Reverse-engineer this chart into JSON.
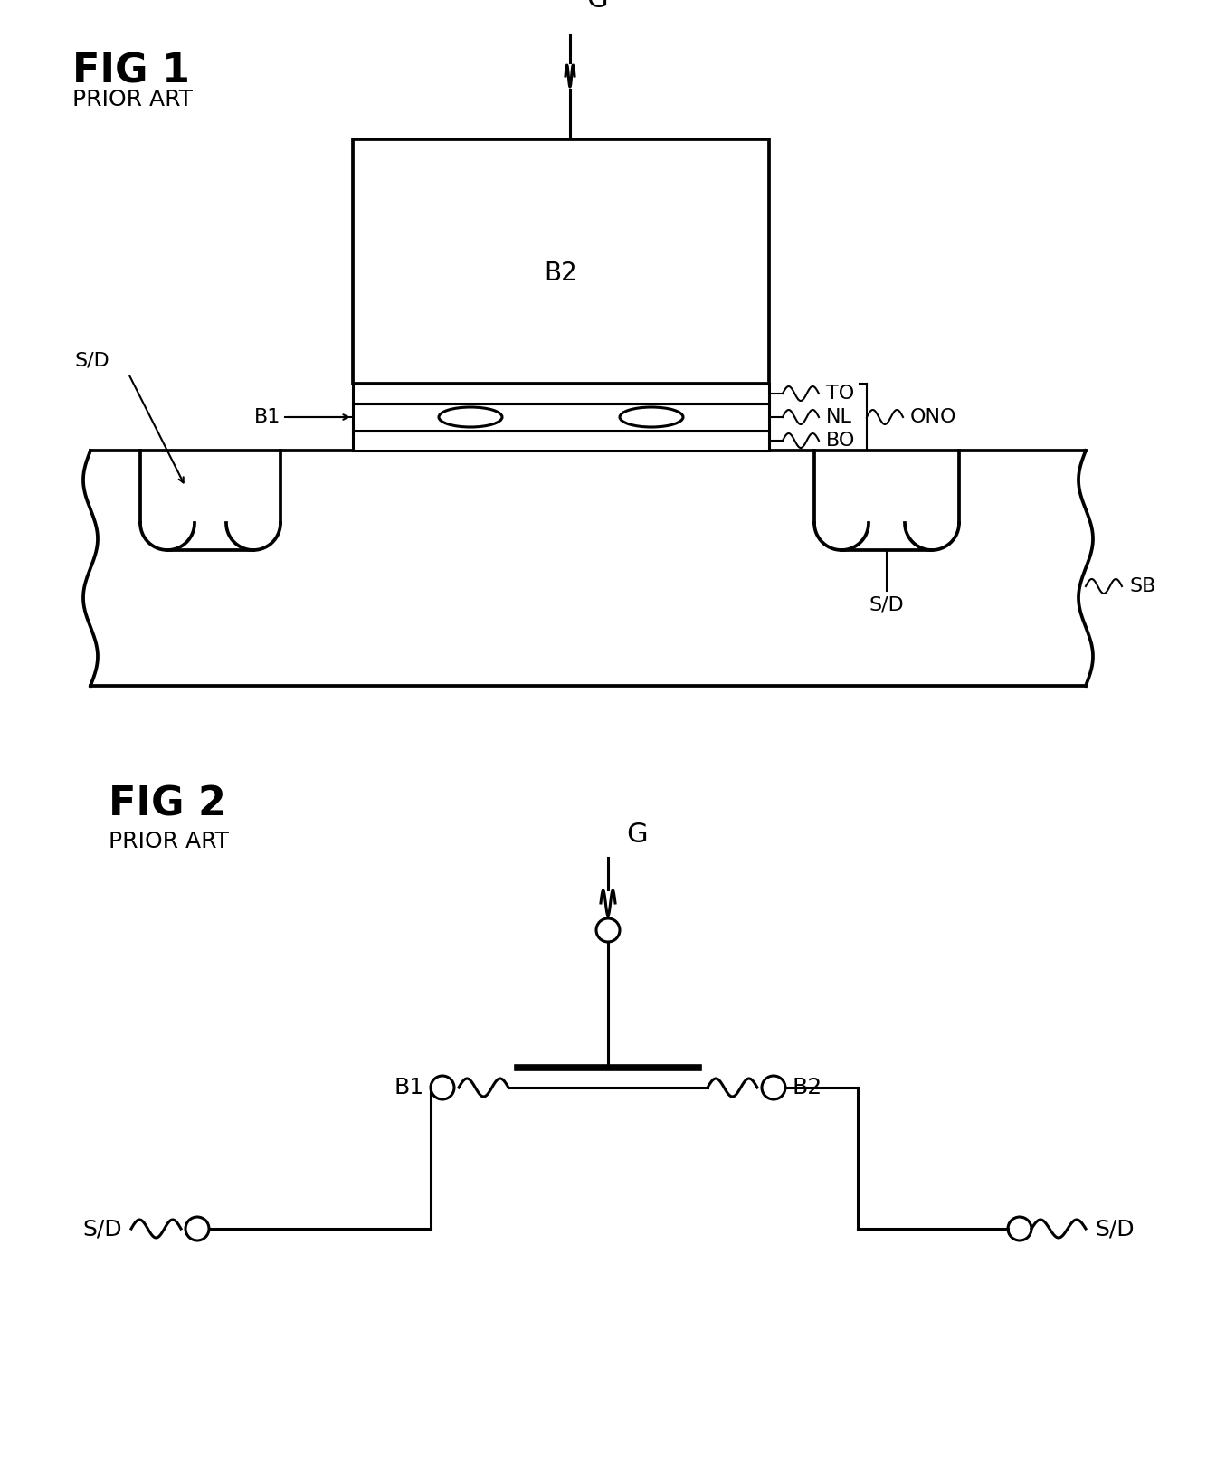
{
  "fig1_title": "FIG 1",
  "fig1_subtitle": "PRIOR ART",
  "fig2_title": "FIG 2",
  "fig2_subtitle": "PRIOR ART",
  "bg_color": "#ffffff",
  "line_color": "#000000",
  "line_width": 2.2,
  "font_size_title": 32,
  "font_size_label": 18,
  "font_size_small": 16
}
